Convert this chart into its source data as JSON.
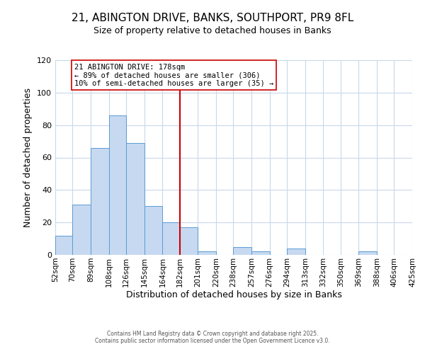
{
  "title": "21, ABINGTON DRIVE, BANKS, SOUTHPORT, PR9 8FL",
  "subtitle": "Size of property relative to detached houses in Banks",
  "xlabel": "Distribution of detached houses by size in Banks",
  "ylabel": "Number of detached properties",
  "bin_edges": [
    52,
    70,
    89,
    108,
    126,
    145,
    164,
    182,
    201,
    220,
    238,
    257,
    276,
    294,
    313,
    332,
    350,
    369,
    388,
    406,
    425
  ],
  "bin_labels": [
    "52sqm",
    "70sqm",
    "89sqm",
    "108sqm",
    "126sqm",
    "145sqm",
    "164sqm",
    "182sqm",
    "201sqm",
    "220sqm",
    "238sqm",
    "257sqm",
    "276sqm",
    "294sqm",
    "313sqm",
    "332sqm",
    "350sqm",
    "369sqm",
    "388sqm",
    "406sqm",
    "425sqm"
  ],
  "bar_heights": [
    12,
    31,
    66,
    86,
    69,
    30,
    20,
    17,
    2,
    0,
    5,
    2,
    0,
    4,
    0,
    0,
    0,
    2,
    0,
    0
  ],
  "bar_color": "#c6d9f1",
  "bar_edge_color": "#5b9bd5",
  "vline_x": 182,
  "vline_color": "#cc0000",
  "annotation_title": "21 ABINGTON DRIVE: 178sqm",
  "annotation_line1": "← 89% of detached houses are smaller (306)",
  "annotation_line2": "10% of semi-detached houses are larger (35) →",
  "annotation_box_edge": "#cc0000",
  "ylim": [
    0,
    120
  ],
  "yticks": [
    0,
    20,
    40,
    60,
    80,
    100,
    120
  ],
  "background_color": "#ffffff",
  "grid_color": "#c8d8ea",
  "footer1": "Contains HM Land Registry data © Crown copyright and database right 2025.",
  "footer2": "Contains public sector information licensed under the Open Government Licence v3.0.",
  "title_fontsize": 11,
  "subtitle_fontsize": 9,
  "annot_fontsize": 7.5
}
